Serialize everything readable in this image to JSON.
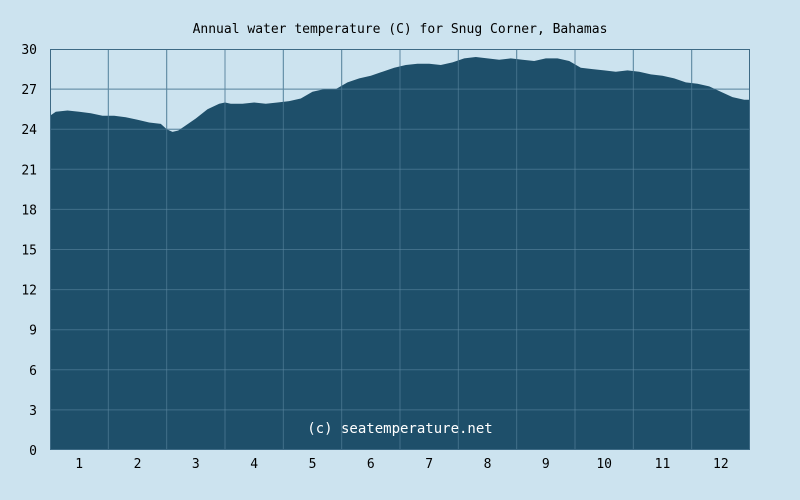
{
  "chart_data": {
    "type": "area",
    "title": "Annual water temperature (C) for Snug Corner, Bahamas",
    "watermark": "(c) seatemperature.net",
    "xlabel": "",
    "ylabel": "",
    "ylim": [
      0,
      30
    ],
    "y_ticks": [
      "0",
      "3",
      "6",
      "9",
      "12",
      "15",
      "18",
      "21",
      "24",
      "27",
      "30"
    ],
    "x_range": [
      0.5,
      12.5
    ],
    "x_ticks": [
      "1",
      "2",
      "3",
      "4",
      "5",
      "6",
      "7",
      "8",
      "9",
      "10",
      "11",
      "12"
    ],
    "grid": true,
    "legend": "none",
    "colors": {
      "background": "#cce3ef",
      "fill": "#1e4f6a",
      "grid": "#5f8aa3",
      "axis": "#3d6a85"
    },
    "series": [
      {
        "x": [
          0.5,
          0.6,
          0.8,
          1.0,
          1.2,
          1.4,
          1.6,
          1.8,
          2.0,
          2.2,
          2.4,
          2.5,
          2.6,
          2.7,
          2.8,
          3.0,
          3.2,
          3.4,
          3.5,
          3.6,
          3.8,
          4.0,
          4.2,
          4.4,
          4.6,
          4.8,
          5.0,
          5.2,
          5.4,
          5.6,
          5.8,
          6.0,
          6.2,
          6.4,
          6.6,
          6.8,
          7.0,
          7.2,
          7.4,
          7.6,
          7.8,
          8.0,
          8.2,
          8.4,
          8.6,
          8.8,
          9.0,
          9.2,
          9.4,
          9.6,
          9.8,
          10.0,
          10.2,
          10.4,
          10.6,
          10.8,
          11.0,
          11.2,
          11.4,
          11.6,
          11.8,
          12.0,
          12.2,
          12.4,
          12.5
        ],
        "y": [
          25.0,
          25.3,
          25.4,
          25.3,
          25.2,
          25.0,
          25.0,
          24.9,
          24.7,
          24.5,
          24.4,
          24.0,
          23.8,
          23.9,
          24.2,
          24.8,
          25.5,
          25.9,
          26.0,
          25.9,
          25.9,
          26.0,
          25.9,
          26.0,
          26.1,
          26.3,
          26.8,
          27.0,
          27.0,
          27.5,
          27.8,
          28.0,
          28.3,
          28.6,
          28.8,
          28.9,
          28.9,
          28.8,
          29.0,
          29.3,
          29.4,
          29.3,
          29.2,
          29.3,
          29.2,
          29.1,
          29.3,
          29.3,
          29.1,
          28.6,
          28.5,
          28.4,
          28.3,
          28.4,
          28.3,
          28.1,
          28.0,
          27.8,
          27.5,
          27.4,
          27.2,
          26.8,
          26.4,
          26.2,
          26.2
        ]
      }
    ]
  }
}
